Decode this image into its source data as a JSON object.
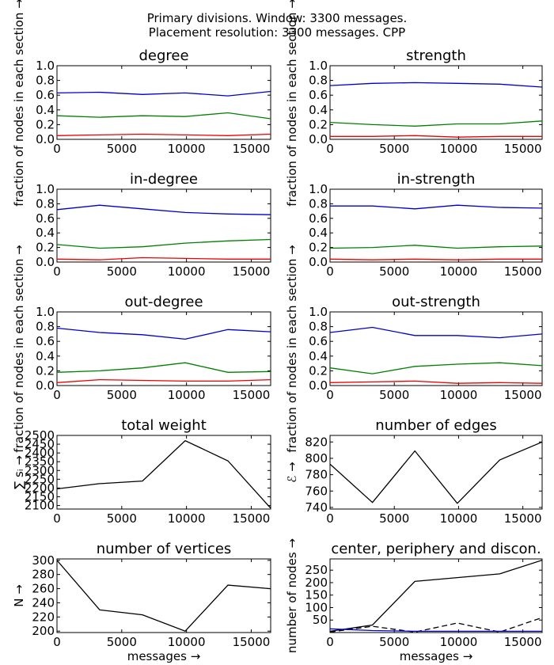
{
  "figure": {
    "suptitle_line1": "Primary divisions. Window: 3300 messages.",
    "suptitle_line2": "Placement resolution: 3300 messages. CPP"
  },
  "chart_data": [
    {
      "id": "degree",
      "type": "line",
      "title": "degree",
      "x": [
        0,
        3300,
        6600,
        9900,
        13200,
        16500
      ],
      "xlim": [
        0,
        16500
      ],
      "xticks": [
        0,
        5000,
        10000,
        15000
      ],
      "ylim": [
        0,
        1
      ],
      "yticks": [
        0.0,
        0.2,
        0.4,
        0.6,
        0.8,
        1.0
      ],
      "ydecimals": 1,
      "ylabel": "fraction of nodes in each section →",
      "series": [
        {
          "color": "#0000cc",
          "dashed": false,
          "values": [
            0.63,
            0.64,
            0.61,
            0.63,
            0.59,
            0.65
          ]
        },
        {
          "color": "#008000",
          "dashed": false,
          "values": [
            0.32,
            0.3,
            0.32,
            0.31,
            0.36,
            0.28
          ]
        },
        {
          "color": "#ee0000",
          "dashed": false,
          "values": [
            0.05,
            0.06,
            0.07,
            0.06,
            0.05,
            0.07
          ]
        }
      ]
    },
    {
      "id": "strength",
      "type": "line",
      "title": "strength",
      "x": [
        0,
        3300,
        6600,
        9900,
        13200,
        16500
      ],
      "xlim": [
        0,
        16500
      ],
      "xticks": [
        0,
        5000,
        10000,
        15000
      ],
      "ylim": [
        0,
        1
      ],
      "yticks": [
        0.0,
        0.2,
        0.4,
        0.6,
        0.8,
        1.0
      ],
      "ydecimals": 1,
      "ylabel": "fraction of nodes in each section →",
      "series": [
        {
          "color": "#0000cc",
          "dashed": false,
          "values": [
            0.73,
            0.76,
            0.77,
            0.76,
            0.75,
            0.71
          ]
        },
        {
          "color": "#008000",
          "dashed": false,
          "values": [
            0.23,
            0.2,
            0.18,
            0.21,
            0.21,
            0.25
          ]
        },
        {
          "color": "#ee0000",
          "dashed": false,
          "values": [
            0.04,
            0.04,
            0.05,
            0.03,
            0.04,
            0.04
          ]
        }
      ]
    },
    {
      "id": "in-degree",
      "type": "line",
      "title": "in-degree",
      "x": [
        0,
        3300,
        6600,
        9900,
        13200,
        16500
      ],
      "xlim": [
        0,
        16500
      ],
      "xticks": [
        0,
        5000,
        10000,
        15000
      ],
      "ylim": [
        0,
        1
      ],
      "yticks": [
        0.0,
        0.2,
        0.4,
        0.6,
        0.8,
        1.0
      ],
      "ydecimals": 1,
      "ylabel": "",
      "series": [
        {
          "color": "#0000cc",
          "dashed": false,
          "values": [
            0.72,
            0.78,
            0.73,
            0.68,
            0.66,
            0.65
          ]
        },
        {
          "color": "#008000",
          "dashed": false,
          "values": [
            0.24,
            0.19,
            0.21,
            0.26,
            0.29,
            0.31
          ]
        },
        {
          "color": "#ee0000",
          "dashed": false,
          "values": [
            0.04,
            0.03,
            0.06,
            0.05,
            0.04,
            0.04
          ]
        }
      ]
    },
    {
      "id": "in-strength",
      "type": "line",
      "title": "in-strength",
      "x": [
        0,
        3300,
        6600,
        9900,
        13200,
        16500
      ],
      "xlim": [
        0,
        16500
      ],
      "xticks": [
        0,
        5000,
        10000,
        15000
      ],
      "ylim": [
        0,
        1
      ],
      "yticks": [
        0.0,
        0.2,
        0.4,
        0.6,
        0.8,
        1.0
      ],
      "ydecimals": 1,
      "ylabel": "",
      "series": [
        {
          "color": "#0000cc",
          "dashed": false,
          "values": [
            0.77,
            0.77,
            0.73,
            0.78,
            0.75,
            0.74
          ]
        },
        {
          "color": "#008000",
          "dashed": false,
          "values": [
            0.19,
            0.2,
            0.23,
            0.19,
            0.21,
            0.22
          ]
        },
        {
          "color": "#ee0000",
          "dashed": false,
          "values": [
            0.04,
            0.03,
            0.04,
            0.03,
            0.04,
            0.04
          ]
        }
      ]
    },
    {
      "id": "out-degree",
      "type": "line",
      "title": "out-degree",
      "x": [
        0,
        3300,
        6600,
        9900,
        13200,
        16500
      ],
      "xlim": [
        0,
        16500
      ],
      "xticks": [
        0,
        5000,
        10000,
        15000
      ],
      "ylim": [
        0,
        1
      ],
      "yticks": [
        0.0,
        0.2,
        0.4,
        0.6,
        0.8,
        1.0
      ],
      "ydecimals": 1,
      "ylabel": "fraction of nodes in each section →",
      "series": [
        {
          "color": "#0000cc",
          "dashed": false,
          "values": [
            0.78,
            0.72,
            0.69,
            0.63,
            0.76,
            0.73
          ]
        },
        {
          "color": "#008000",
          "dashed": false,
          "values": [
            0.18,
            0.2,
            0.24,
            0.31,
            0.18,
            0.19
          ]
        },
        {
          "color": "#ee0000",
          "dashed": false,
          "values": [
            0.04,
            0.08,
            0.07,
            0.06,
            0.06,
            0.08
          ]
        }
      ]
    },
    {
      "id": "out-strength",
      "type": "line",
      "title": "out-strength",
      "x": [
        0,
        3300,
        6600,
        9900,
        13200,
        16500
      ],
      "xlim": [
        0,
        16500
      ],
      "xticks": [
        0,
        5000,
        10000,
        15000
      ],
      "ylim": [
        0,
        1
      ],
      "yticks": [
        0.0,
        0.2,
        0.4,
        0.6,
        0.8,
        1.0
      ],
      "ydecimals": 1,
      "ylabel": "fraction of nodes in each section →",
      "series": [
        {
          "color": "#0000cc",
          "dashed": false,
          "values": [
            0.72,
            0.79,
            0.68,
            0.68,
            0.65,
            0.7
          ]
        },
        {
          "color": "#008000",
          "dashed": false,
          "values": [
            0.24,
            0.16,
            0.26,
            0.29,
            0.31,
            0.27
          ]
        },
        {
          "color": "#ee0000",
          "dashed": false,
          "values": [
            0.04,
            0.05,
            0.06,
            0.03,
            0.04,
            0.03
          ]
        }
      ]
    },
    {
      "id": "total-weight",
      "type": "line",
      "title": "total weight",
      "x": [
        0,
        3300,
        6600,
        9900,
        13200,
        16500
      ],
      "xlim": [
        0,
        16500
      ],
      "xticks": [
        0,
        5000,
        10000,
        15000
      ],
      "ylim": [
        2080,
        2500
      ],
      "yticks": [
        2100,
        2150,
        2200,
        2250,
        2300,
        2350,
        2400,
        2450,
        2500
      ],
      "ydecimals": 0,
      "ylabel": "∑ sᵢ →",
      "series": [
        {
          "color": "#000000",
          "dashed": false,
          "values": [
            2195,
            2225,
            2240,
            2470,
            2355,
            2085
          ]
        }
      ]
    },
    {
      "id": "number-of-edges",
      "type": "line",
      "title": "number of edges",
      "x": [
        0,
        3300,
        6600,
        9900,
        13200,
        16500
      ],
      "xlim": [
        0,
        16500
      ],
      "xticks": [
        0,
        5000,
        10000,
        15000
      ],
      "ylim": [
        738,
        828
      ],
      "yticks": [
        740,
        760,
        780,
        800,
        820
      ],
      "ydecimals": 0,
      "ylabel": "ℰ →",
      "series": [
        {
          "color": "#000000",
          "dashed": false,
          "values": [
            793,
            746,
            809,
            745,
            798,
            820
          ]
        }
      ]
    },
    {
      "id": "number-of-vertices",
      "type": "line",
      "title": "number of vertices",
      "x": [
        0,
        3300,
        6600,
        9900,
        13200,
        16500
      ],
      "xlim": [
        0,
        16500
      ],
      "xticks": [
        0,
        5000,
        10000,
        15000
      ],
      "ylim": [
        198,
        302
      ],
      "yticks": [
        200,
        220,
        240,
        260,
        280,
        300
      ],
      "ydecimals": 0,
      "ylabel": "N →",
      "xlabel": "messages →",
      "series": [
        {
          "color": "#000000",
          "dashed": false,
          "values": [
            300,
            230,
            223,
            200,
            265,
            260
          ]
        }
      ]
    },
    {
      "id": "center-periphery",
      "type": "line",
      "title": "center, periphery and discon.",
      "x": [
        0,
        3300,
        6600,
        9900,
        13200,
        16500
      ],
      "xlim": [
        0,
        16500
      ],
      "xticks": [
        0,
        5000,
        10000,
        15000
      ],
      "ylim": [
        0,
        295
      ],
      "yticks": [
        50,
        100,
        150,
        200,
        250
      ],
      "ydecimals": 0,
      "ylabel": "number of nodes →",
      "xlabel": "messages →",
      "series": [
        {
          "color": "#000000",
          "dashed": false,
          "values": [
            5,
            30,
            205,
            220,
            235,
            290
          ]
        },
        {
          "color": "#000000",
          "dashed": true,
          "values": [
            2,
            25,
            2,
            38,
            2,
            60
          ]
        },
        {
          "color": "#0000cc",
          "dashed": false,
          "values": [
            15,
            8,
            5,
            5,
            5,
            5
          ]
        }
      ]
    }
  ]
}
